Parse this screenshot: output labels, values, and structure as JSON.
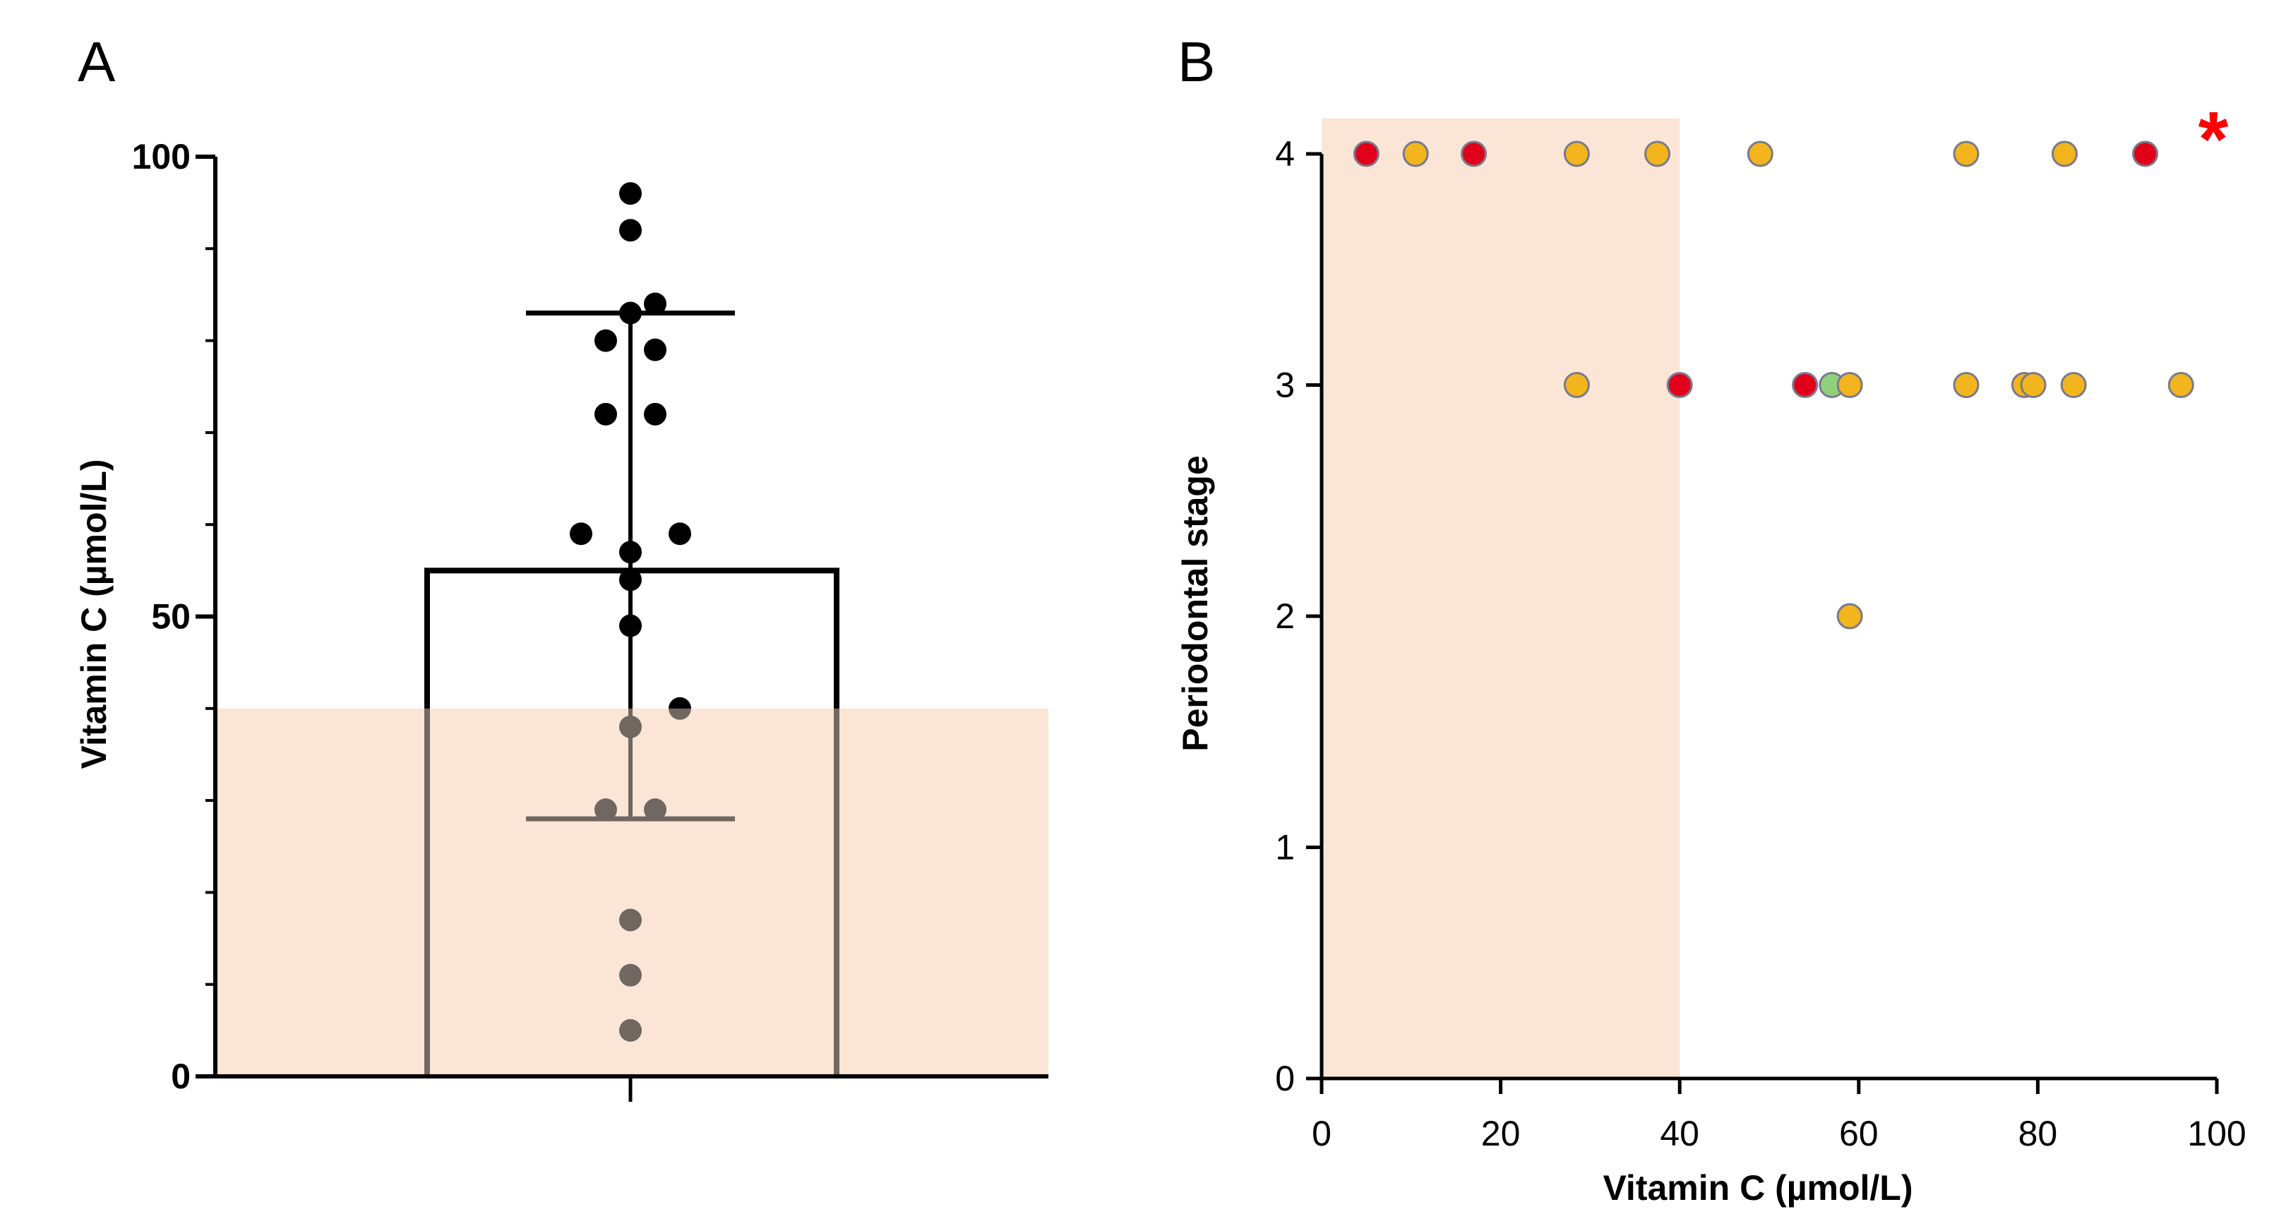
{
  "colors": {
    "shade": "#fbe5d6",
    "black": "#000000",
    "dot_a": "#000000",
    "red": "#e0001a",
    "yellow": "#f2b51d",
    "green": "#8fd17b",
    "dot_stroke": "#7a7a8c",
    "star": "#ff0000"
  },
  "chart_data": [
    {
      "panel": "A",
      "type": "bar",
      "title": "",
      "ylabel": "Vitamin C (µmol/L)",
      "xlabel": "",
      "ylim": [
        0,
        100
      ],
      "yticks": [
        0,
        50,
        100
      ],
      "shaded_threshold": 40,
      "bar": {
        "mean": 55,
        "sd_upper": 83,
        "sd_lower": 28
      },
      "points": [
        96,
        92,
        84,
        83,
        80,
        79,
        72,
        72,
        59,
        59,
        57,
        54,
        49,
        40,
        38,
        29,
        29,
        17,
        11,
        5
      ]
    },
    {
      "panel": "B",
      "type": "scatter",
      "title": "",
      "xlabel": "Vitamin C (µmol/L)",
      "ylabel": "Periodontal stage",
      "xlim": [
        0,
        100
      ],
      "ylim": [
        0,
        4
      ],
      "xticks": [
        0,
        20,
        40,
        60,
        80,
        100
      ],
      "yticks": [
        0,
        1,
        2,
        3,
        4
      ],
      "shaded_x_range": [
        0,
        40
      ],
      "annotation": "*",
      "points": [
        {
          "x": 5,
          "y": 4,
          "color": "red"
        },
        {
          "x": 10.5,
          "y": 4,
          "color": "yellow"
        },
        {
          "x": 17,
          "y": 4,
          "color": "red"
        },
        {
          "x": 28.5,
          "y": 4,
          "color": "yellow"
        },
        {
          "x": 37.5,
          "y": 4,
          "color": "yellow"
        },
        {
          "x": 49,
          "y": 4,
          "color": "yellow"
        },
        {
          "x": 72,
          "y": 4,
          "color": "yellow"
        },
        {
          "x": 83,
          "y": 4,
          "color": "yellow"
        },
        {
          "x": 92,
          "y": 4,
          "color": "red"
        },
        {
          "x": 28.5,
          "y": 3,
          "color": "yellow"
        },
        {
          "x": 40,
          "y": 3,
          "color": "red"
        },
        {
          "x": 54,
          "y": 3,
          "color": "red"
        },
        {
          "x": 57,
          "y": 3,
          "color": "green"
        },
        {
          "x": 59,
          "y": 3,
          "color": "yellow"
        },
        {
          "x": 72,
          "y": 3,
          "color": "yellow"
        },
        {
          "x": 78.5,
          "y": 3,
          "color": "yellow"
        },
        {
          "x": 79.5,
          "y": 3,
          "color": "yellow"
        },
        {
          "x": 84,
          "y": 3,
          "color": "yellow"
        },
        {
          "x": 96,
          "y": 3,
          "color": "yellow"
        },
        {
          "x": 59,
          "y": 2,
          "color": "yellow"
        }
      ]
    }
  ]
}
